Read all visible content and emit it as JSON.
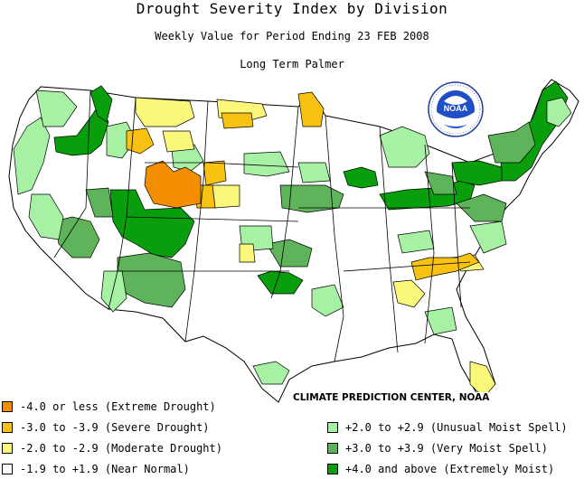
{
  "title": "Drought Severity Index by Division",
  "subtitle": "Weekly Value for Period Ending 23 FEB 2008",
  "index_name": "Long Term Palmer",
  "credit": "CLIMATE PREDICTION CENTER, NOAA",
  "logo_text": "NOAA",
  "colors": {
    "extreme_drought": "#f28e00",
    "severe_drought": "#f7c211",
    "moderate_drought": "#fbf77a",
    "near_normal": "#ffffff",
    "unusual_moist": "#a6f1a3",
    "very_moist": "#5fb35b",
    "extremely_moist": "#089e0c",
    "border": "#000000"
  },
  "legend": [
    {
      "label": "-4.0 or less (Extreme Drought)",
      "color": "#f28e00"
    },
    {
      "label": "-3.0 to -3.9 (Severe Drought)",
      "color": "#f7c211"
    },
    {
      "label": "-2.0 to -2.9 (Moderate Drought)",
      "color": "#fbf77a"
    },
    {
      "label": "-1.9 to +1.9 (Near Normal)",
      "color": "#ffffff"
    },
    {
      "label": "+2.0 to +2.9 (Unusual Moist Spell)",
      "color": "#a6f1a3"
    },
    {
      "label": "+3.0 to +3.9 (Very Moist Spell)",
      "color": "#5fb35b"
    },
    {
      "label": "+4.0 and above (Extremely Moist)",
      "color": "#089e0c"
    }
  ]
}
